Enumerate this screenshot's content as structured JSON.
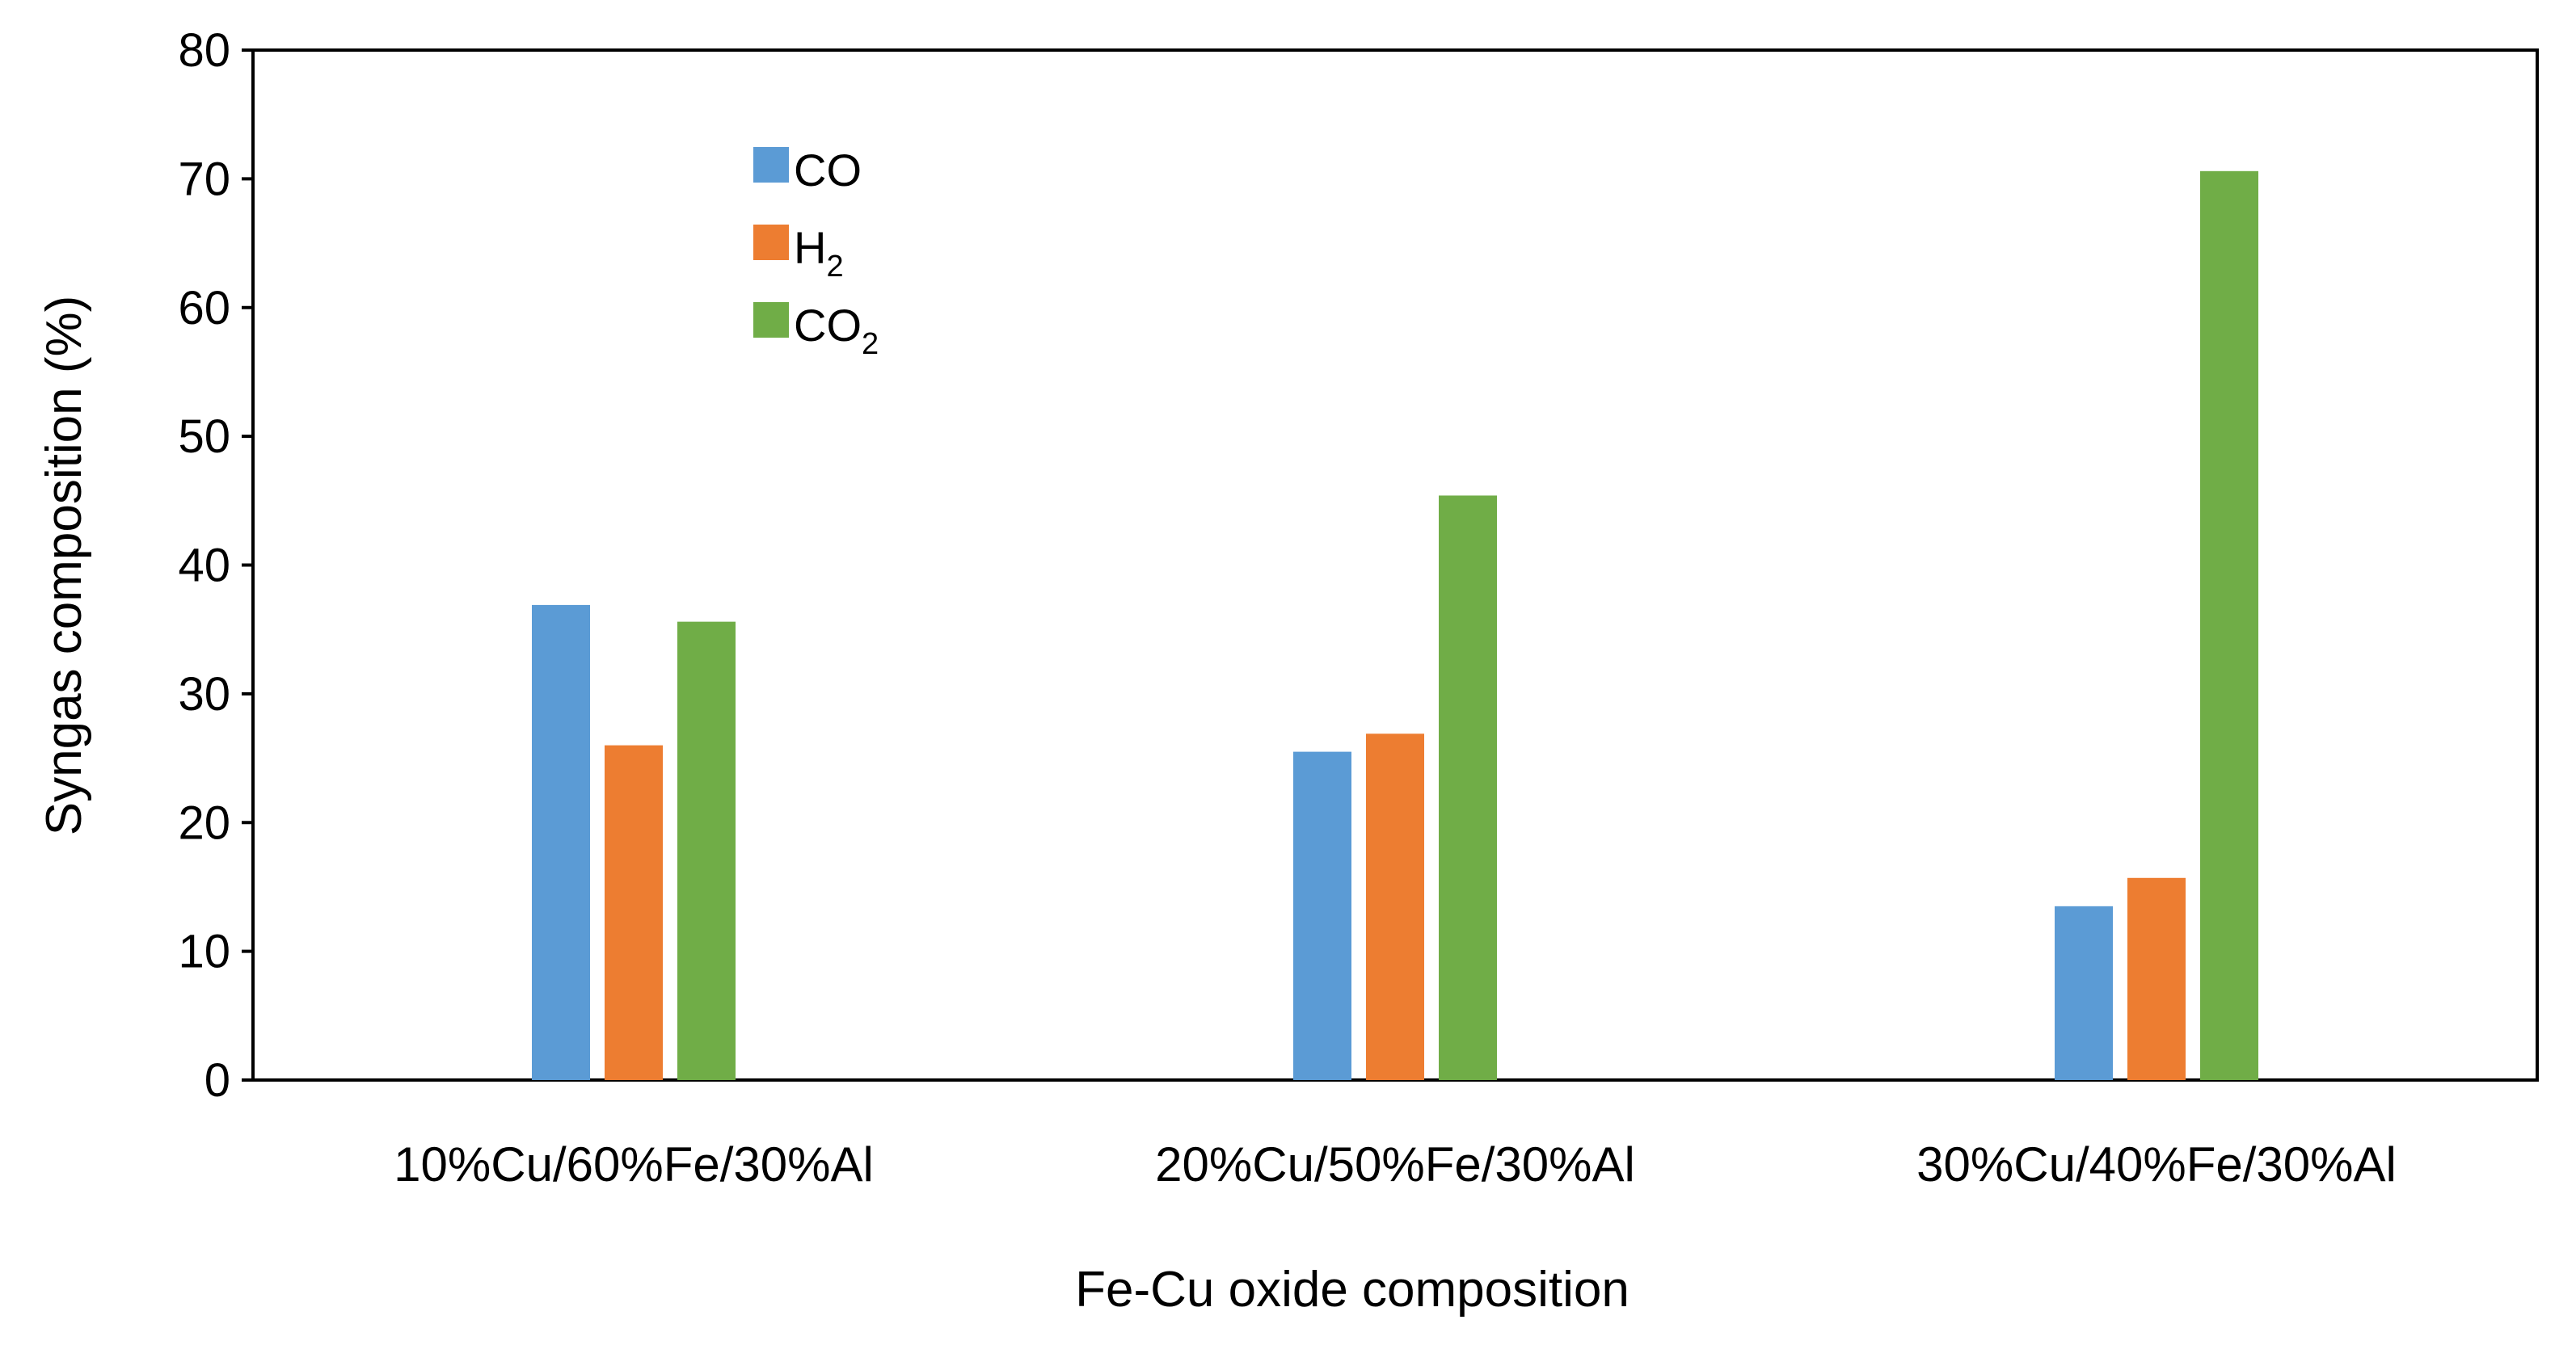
{
  "chart_data": {
    "type": "bar",
    "title": "",
    "categories": [
      "10%Cu/60%Fe/30%Al",
      "20%Cu/50%Fe/30%Al",
      "30%Cu/40%Fe/30%Al"
    ],
    "series": [
      {
        "name": "CO",
        "base": "CO",
        "sub": "",
        "color": "#5b9bd5",
        "values": [
          36.9,
          25.5,
          13.5
        ]
      },
      {
        "name": "H2",
        "base": "H",
        "sub": "2",
        "color": "#ed7d31",
        "values": [
          26.0,
          26.9,
          15.7
        ]
      },
      {
        "name": "CO2",
        "base": "CO",
        "sub": "2",
        "color": "#70ad47",
        "values": [
          35.6,
          45.4,
          70.6
        ]
      }
    ],
    "xlabel": "Fe-Cu oxide  composition",
    "ylabel": "Syngas composition (%)",
    "ylim": [
      0,
      80
    ],
    "yticks": [
      0,
      10,
      20,
      30,
      40,
      50,
      60,
      70,
      80
    ],
    "grid": false,
    "legend": "upper-left inside plot"
  }
}
